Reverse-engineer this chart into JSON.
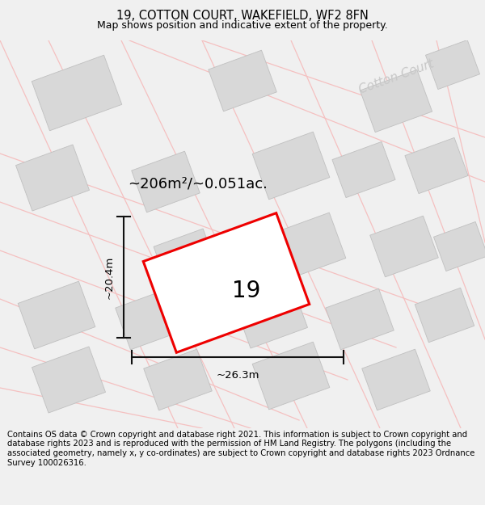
{
  "title_line1": "19, COTTON COURT, WAKEFIELD, WF2 8FN",
  "title_line2": "Map shows position and indicative extent of the property.",
  "area_text": "~206m²/~0.051ac.",
  "label_19": "19",
  "dim_width": "~26.3m",
  "dim_height": "~20.4m",
  "street_label": "Cotton Court",
  "footer_text": "Contains OS data © Crown copyright and database right 2021. This information is subject to Crown copyright and database rights 2023 and is reproduced with the permission of HM Land Registry. The polygons (including the associated geometry, namely x, y co-ordinates) are subject to Crown copyright and database rights 2023 Ordnance Survey 100026316.",
  "bg_color": "#f0f0f0",
  "map_bg": "#ffffff",
  "building_fill": "#d8d8d8",
  "building_edge": "#c0c0c0",
  "road_color": "#f5c0c0",
  "target_fill": "#ffffff",
  "target_edge": "#ee0000",
  "dim_line_color": "#111111",
  "title_fontsize": 10.5,
  "subtitle_fontsize": 9,
  "area_fontsize": 13,
  "label_fontsize": 20,
  "dim_fontsize": 9.5,
  "footer_fontsize": 7.2,
  "street_label_color": "#c8c8c8",
  "street_label_fontsize": 11
}
